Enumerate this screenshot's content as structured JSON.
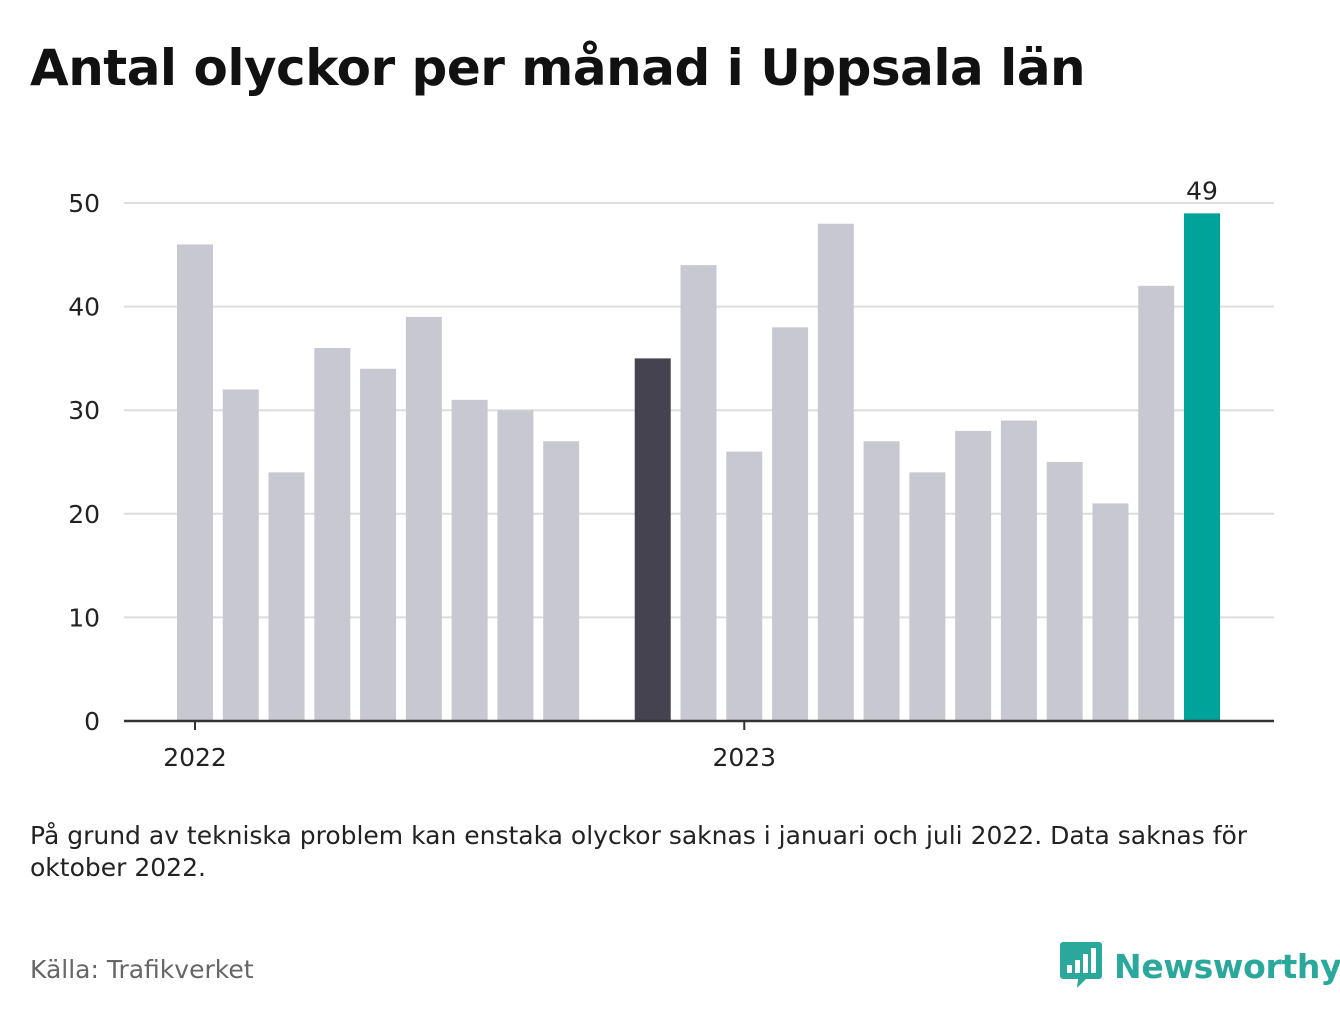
{
  "title": "Antal olyckor per månad i Uppsala län",
  "note": "På grund av tekniska problem kan enstaka olyckor saknas i januari och juli 2022. Data saknas för oktober 2022.",
  "source": "Källa: Trafikverket",
  "brand": {
    "name": "Newsworthy",
    "icon": "bar-chart-speech-bubble-icon"
  },
  "colors": {
    "default_bar": "#c8c8d0",
    "highlight_dark": "#44434f",
    "highlight_latest": "#00a399",
    "grid": "#dddddd",
    "axis": "#333333"
  },
  "chart_data": {
    "type": "bar",
    "x_tick_labels": [
      "2022",
      "2023"
    ],
    "yticks": [
      0,
      10,
      20,
      30,
      40,
      50
    ],
    "ylim": [
      0,
      50
    ],
    "grid": true,
    "series": [
      {
        "values": [
          46,
          32,
          24,
          36,
          34,
          39,
          31,
          30,
          27,
          null,
          35,
          44,
          26,
          38,
          48,
          27,
          24,
          28,
          29,
          25,
          21,
          42,
          49
        ]
      }
    ],
    "highlight": [
      {
        "index": 10,
        "color": "#44434f"
      },
      {
        "index": 22,
        "color": "#00a399"
      }
    ],
    "data_labels": [
      {
        "index": 22,
        "text": "49"
      }
    ]
  }
}
